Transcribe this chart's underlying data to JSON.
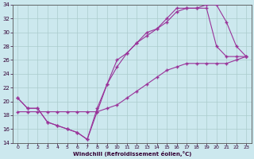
{
  "xlabel": "Windchill (Refroidissement éolien,°C)",
  "bg_color": "#cce8ee",
  "grid_color": "#aacccc",
  "line_color": "#993399",
  "xlim": [
    -0.5,
    23.5
  ],
  "ylim": [
    14,
    34
  ],
  "xticks": [
    0,
    1,
    2,
    3,
    4,
    5,
    6,
    7,
    8,
    9,
    10,
    11,
    12,
    13,
    14,
    15,
    16,
    17,
    18,
    19,
    20,
    21,
    22,
    23
  ],
  "yticks": [
    14,
    16,
    18,
    20,
    22,
    24,
    26,
    28,
    30,
    32,
    34
  ],
  "line1_x": [
    0,
    1,
    2,
    3,
    4,
    5,
    6,
    7,
    8,
    9,
    10,
    11,
    12,
    13,
    14,
    15,
    16,
    17,
    18,
    19,
    20,
    21,
    22,
    23
  ],
  "line1_y": [
    20.5,
    19.0,
    19.0,
    17.0,
    16.5,
    16.0,
    15.5,
    14.5,
    19.0,
    22.5,
    26.0,
    27.0,
    28.5,
    30.0,
    30.5,
    32.0,
    33.5,
    33.5,
    33.5,
    33.5,
    28.0,
    26.5,
    26.5,
    26.5
  ],
  "line2_x": [
    0,
    1,
    2,
    3,
    4,
    5,
    6,
    7,
    8,
    9,
    10,
    11,
    12,
    13,
    14,
    15,
    16,
    17,
    18,
    19,
    20,
    21,
    22,
    23
  ],
  "line2_y": [
    20.5,
    19.0,
    19.0,
    17.0,
    16.5,
    16.0,
    15.5,
    14.5,
    18.5,
    22.5,
    25.0,
    27.0,
    28.5,
    29.5,
    30.5,
    31.5,
    33.0,
    33.5,
    33.5,
    34.0,
    34.0,
    31.5,
    28.0,
    26.5
  ],
  "line3_x": [
    0,
    1,
    2,
    3,
    4,
    5,
    6,
    7,
    8,
    9,
    10,
    11,
    12,
    13,
    14,
    15,
    16,
    17,
    18,
    19,
    20,
    21,
    22,
    23
  ],
  "line3_y": [
    18.5,
    18.5,
    18.5,
    18.5,
    18.5,
    18.5,
    18.5,
    18.5,
    18.5,
    19.0,
    19.5,
    20.5,
    21.5,
    22.5,
    23.5,
    24.5,
    25.0,
    25.5,
    25.5,
    25.5,
    25.5,
    25.5,
    26.0,
    26.5
  ]
}
